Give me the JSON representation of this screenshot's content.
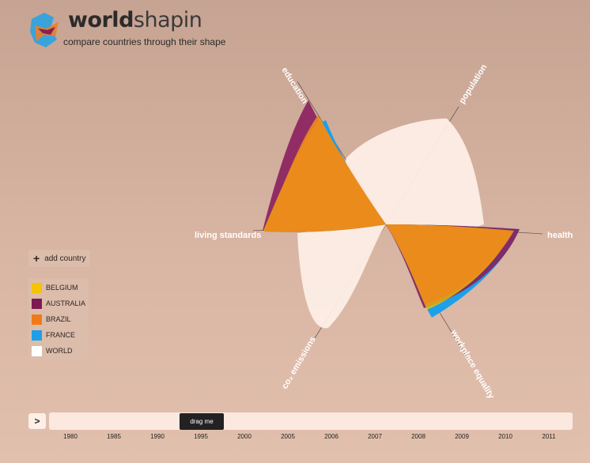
{
  "header": {
    "brand_bold": "world",
    "brand_light": "shapin",
    "tagline": "compare countries through their shape"
  },
  "axes": {
    "education": "education",
    "population": "population",
    "health": "health",
    "workplace_equality": "workplace equality",
    "co2_emissions": "co₂ emissions",
    "living_standards": "living standards"
  },
  "sidebar": {
    "add_country": "add country",
    "countries": [
      {
        "name": "BELGIUM",
        "color": "#f5c400"
      },
      {
        "name": "AUSTRALIA",
        "color": "#7e1a52"
      },
      {
        "name": "BRAZIL",
        "color": "#f07a1a"
      },
      {
        "name": "FRANCE",
        "color": "#1da0e8"
      },
      {
        "name": "WORLD",
        "color": "#ffffff"
      }
    ]
  },
  "timeline": {
    "play": ">",
    "handle": "drag me",
    "years": [
      "1980",
      "1985",
      "1990",
      "1995",
      "2000",
      "2005",
      "2006",
      "2007",
      "2008",
      "2009",
      "2010",
      "2011"
    ]
  }
}
